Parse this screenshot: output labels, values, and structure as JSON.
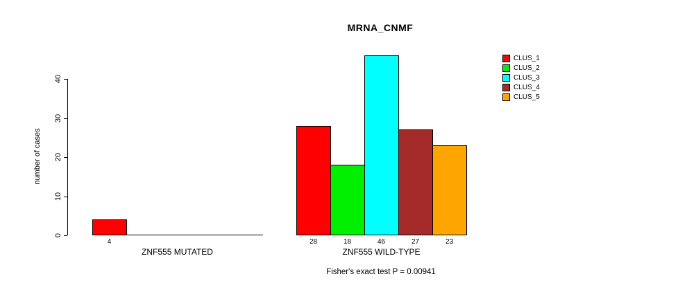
{
  "chart_data": {
    "type": "bar",
    "title": "MRNA_CNMF",
    "ylabel": "number of cases",
    "xlabel": "",
    "yticks": [
      0,
      10,
      20,
      30,
      40
    ],
    "ylim": [
      0,
      47
    ],
    "grid": false,
    "legend_position": "top-right",
    "categories": [
      "CLUS_1",
      "CLUS_2",
      "CLUS_3",
      "CLUS_4",
      "CLUS_5"
    ],
    "colors": [
      "#FF0000",
      "#00EE00",
      "#00FFFF",
      "#A52A2A",
      "#FFA500"
    ],
    "groups": [
      {
        "label": "ZNF555 MUTATED",
        "values": [
          4,
          0,
          0,
          0,
          0
        ],
        "bar_labels": [
          "4",
          "",
          "",
          "",
          ""
        ]
      },
      {
        "label": "ZNF555 WILD-TYPE",
        "values": [
          28,
          18,
          46,
          27,
          23
        ],
        "bar_labels": [
          "28",
          "18",
          "46",
          "27",
          "23"
        ]
      }
    ],
    "legend": [
      "CLUS_1",
      "CLUS_2",
      "CLUS_3",
      "CLUS_4",
      "CLUS_5"
    ],
    "caption": "Fisher's exact test P = 0.00941"
  }
}
